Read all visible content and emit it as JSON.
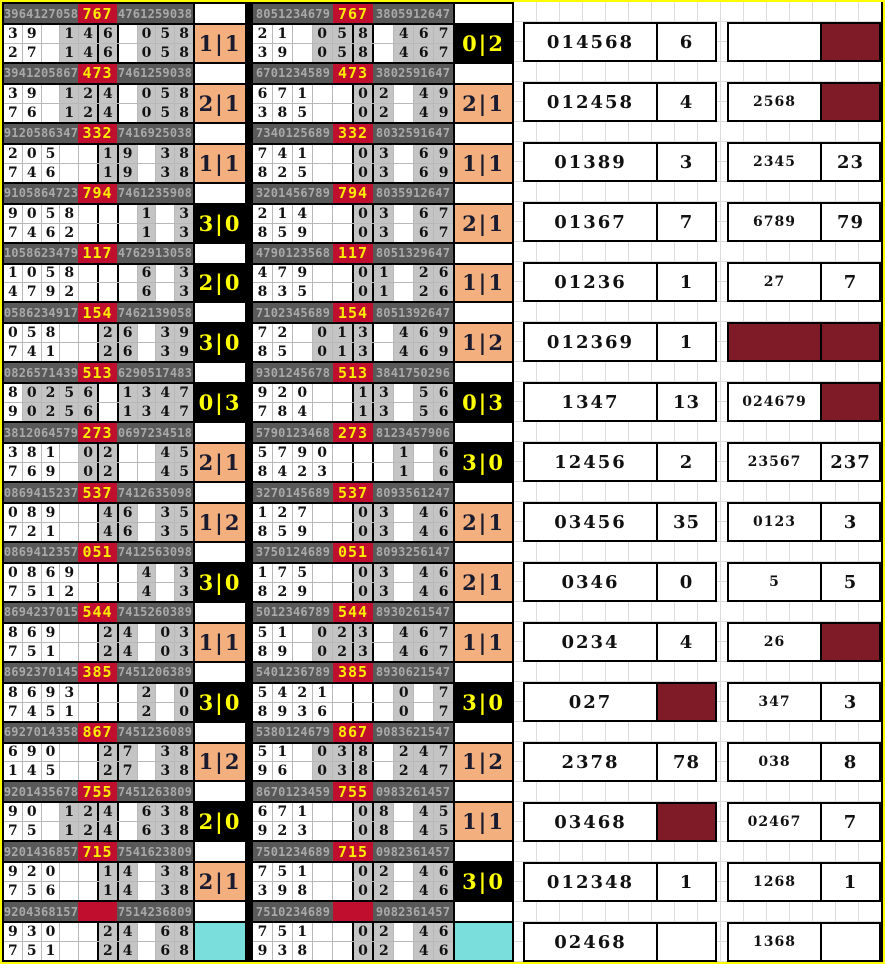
{
  "colors": {
    "outer_border_yellow": "#ffff00",
    "header_bg_gray": "#595959",
    "header_text_gray": "#a9a9a9",
    "draw_cell_red": "#c00e2f",
    "draw_cell_text_yellow": "#ffec00",
    "highlight_cell_gray": "#c4c4c4",
    "badge_orange": "#f3b07e",
    "badge_black": "#000000",
    "badge_text_yellow": "#ffff00",
    "badge_cyan": "#7adedd",
    "maroon_fill": "#7e1b27",
    "gridline_gray": "#dcdcdc"
  },
  "chart_data": {
    "type": "table",
    "left_panel_blocks": [
      {
        "hl": "3964127058",
        "hm": "767",
        "hr": "4761259038",
        "r1": "39.146.058",
        "r2": "27.146.058",
        "g": [
          4,
          5,
          6,
          8,
          9,
          10
        ],
        "b": [
          "1|1",
          "orange"
        ]
      },
      {
        "hl": "3941205867",
        "hm": "473",
        "hr": "7461259038",
        "r1": "39.124.058",
        "r2": "76.124.058",
        "g": [
          4,
          5,
          6,
          8,
          9,
          10
        ],
        "b": [
          "2|1",
          "orange"
        ]
      },
      {
        "hl": "9120586347",
        "hm": "332",
        "hr": "7416925038",
        "r1": "205..19.38",
        "r2": "746..19.38",
        "g": [
          6,
          7,
          9,
          10
        ],
        "b": [
          "1|1",
          "orange"
        ]
      },
      {
        "hl": "9105864723",
        "hm": "794",
        "hr": "7461235908",
        "r1": "9058...1.3",
        "r2": "7462...1.3",
        "g": [
          8,
          10
        ],
        "b": [
          "3|0",
          "black"
        ]
      },
      {
        "hl": "1058623479",
        "hm": "117",
        "hr": "4762913058",
        "r1": "1058...6.3",
        "r2": "4792...6.3",
        "g": [
          8,
          10
        ],
        "b": [
          "2|0",
          "black"
        ]
      },
      {
        "hl": "0586234917",
        "hm": "154",
        "hr": "7462139058",
        "r1": "058..26.39",
        "r2": "741..26.39",
        "g": [
          6,
          7,
          9,
          10
        ],
        "b": [
          "3|0",
          "black"
        ]
      },
      {
        "hl": "0826571439",
        "hm": "513",
        "hr": "6290517483",
        "r1": "80256.1347",
        "r2": "90256.1347",
        "g": [
          2,
          3,
          4,
          5,
          7,
          8,
          9,
          10
        ],
        "b": [
          "0|3",
          "black"
        ]
      },
      {
        "hl": "3812064579",
        "hm": "273",
        "hr": "0697234518",
        "r1": "381.02..45",
        "r2": "769.02..45",
        "g": [
          5,
          6,
          9,
          10
        ],
        "b": [
          "2|1",
          "orange"
        ]
      },
      {
        "hl": "0869415237",
        "hm": "537",
        "hr": "7412635098",
        "r1": "089..46.35",
        "r2": "721..46.35",
        "g": [
          6,
          7,
          9,
          10
        ],
        "b": [
          "1|2",
          "orange"
        ]
      },
      {
        "hl": "0869412357",
        "hm": "051",
        "hr": "7412563098",
        "r1": "0869...4.3",
        "r2": "7512...4.3",
        "g": [
          8,
          10
        ],
        "b": [
          "3|0",
          "black"
        ]
      },
      {
        "hl": "8694237015",
        "hm": "544",
        "hr": "7415260389",
        "r1": "869..24.03",
        "r2": "751..24.03",
        "g": [
          6,
          7,
          9,
          10
        ],
        "b": [
          "1|1",
          "orange"
        ]
      },
      {
        "hl": "8692370145",
        "hm": "385",
        "hr": "7451206389",
        "r1": "8693...2.0",
        "r2": "7451...2.0",
        "g": [
          8,
          10
        ],
        "b": [
          "3|0",
          "black"
        ]
      },
      {
        "hl": "6927014358",
        "hm": "867",
        "hr": "7451236089",
        "r1": "690..27.38",
        "r2": "145..27.38",
        "g": [
          6,
          7,
          9,
          10
        ],
        "b": [
          "1|2",
          "orange"
        ]
      },
      {
        "hl": "9201435678",
        "hm": "755",
        "hr": "7451263809",
        "r1": "90.124.638",
        "r2": "75.124.638",
        "g": [
          4,
          5,
          6,
          8,
          9,
          10
        ],
        "b": [
          "2|0",
          "black"
        ]
      },
      {
        "hl": "9201436857",
        "hm": "715",
        "hr": "7541623809",
        "r1": "920..14.38",
        "r2": "756..14.38",
        "g": [
          6,
          7,
          9,
          10
        ],
        "b": [
          "2|1",
          "orange"
        ]
      },
      {
        "hl": "9204368157",
        "hm": "",
        "hr": "7514236809",
        "r1": "930..24.68",
        "r2": "751..24.68",
        "g": [
          6,
          7,
          9,
          10
        ],
        "b": [
          "",
          "cyan"
        ]
      }
    ],
    "middle_panel_blocks": [
      {
        "hl": "8051234679",
        "hm": "767",
        "hr": "3805912647",
        "r1": "21.058.467",
        "r2": "39.058.467",
        "g": [
          4,
          5,
          6,
          8,
          9,
          10
        ],
        "b": [
          "0|2",
          "black"
        ]
      },
      {
        "hl": "6701234589",
        "hm": "473",
        "hr": "3802591647",
        "r1": "671..02.49",
        "r2": "385..02.49",
        "g": [
          6,
          7,
          9,
          10
        ],
        "b": [
          "2|1",
          "orange"
        ]
      },
      {
        "hl": "7340125689",
        "hm": "332",
        "hr": "8032591647",
        "r1": "741..03.69",
        "r2": "825..03.69",
        "g": [
          6,
          7,
          9,
          10
        ],
        "b": [
          "1|1",
          "orange"
        ]
      },
      {
        "hl": "3201456789",
        "hm": "794",
        "hr": "8035912647",
        "r1": "214..03.67",
        "r2": "859..03.67",
        "g": [
          6,
          7,
          9,
          10
        ],
        "b": [
          "2|1",
          "orange"
        ]
      },
      {
        "hl": "4790123568",
        "hm": "117",
        "hr": "8051329647",
        "r1": "479..01.26",
        "r2": "835..01.26",
        "g": [
          6,
          7,
          9,
          10
        ],
        "b": [
          "1|1",
          "orange"
        ]
      },
      {
        "hl": "7102345689",
        "hm": "154",
        "hr": "8051392647",
        "r1": "72.013.469",
        "r2": "85.013.469",
        "g": [
          4,
          5,
          6,
          8,
          9,
          10
        ],
        "b": [
          "1|2",
          "orange"
        ]
      },
      {
        "hl": "9301245678",
        "hm": "513",
        "hr": "3841750296",
        "r1": "920..13.56",
        "r2": "784..13.56",
        "g": [
          6,
          7,
          9,
          10
        ],
        "b": [
          "0|3",
          "black"
        ]
      },
      {
        "hl": "5790123468",
        "hm": "273",
        "hr": "8123457906",
        "r1": "5790...1.6",
        "r2": "8423...1.6",
        "g": [
          8,
          10
        ],
        "b": [
          "3|0",
          "black"
        ]
      },
      {
        "hl": "3270145689",
        "hm": "537",
        "hr": "8093561247",
        "r1": "127..03.46",
        "r2": "859..03.46",
        "g": [
          6,
          7,
          9,
          10
        ],
        "b": [
          "2|1",
          "orange"
        ]
      },
      {
        "hl": "3750124689",
        "hm": "051",
        "hr": "8093256147",
        "r1": "175..03.46",
        "r2": "829..03.46",
        "g": [
          6,
          7,
          9,
          10
        ],
        "b": [
          "2|1",
          "orange"
        ]
      },
      {
        "hl": "5012346789",
        "hm": "544",
        "hr": "8930261547",
        "r1": "51.023.467",
        "r2": "89.023.467",
        "g": [
          4,
          5,
          6,
          8,
          9,
          10
        ],
        "b": [
          "1|1",
          "orange"
        ]
      },
      {
        "hl": "5401236789",
        "hm": "385",
        "hr": "8930621547",
        "r1": "5421...0.7",
        "r2": "8936...0.7",
        "g": [
          8,
          10
        ],
        "b": [
          "3|0",
          "black"
        ]
      },
      {
        "hl": "5380124679",
        "hm": "867",
        "hr": "9083621547",
        "r1": "51.038.247",
        "r2": "96.038.247",
        "g": [
          4,
          5,
          6,
          8,
          9,
          10
        ],
        "b": [
          "1|2",
          "orange"
        ]
      },
      {
        "hl": "8670123459",
        "hm": "755",
        "hr": "0983261457",
        "r1": "671..08.45",
        "r2": "923..08.45",
        "g": [
          6,
          7,
          9,
          10
        ],
        "b": [
          "1|1",
          "orange"
        ]
      },
      {
        "hl": "7501234689",
        "hm": "715",
        "hr": "0982361457",
        "r1": "751..02.46",
        "r2": "398..02.46",
        "g": [
          6,
          7,
          9,
          10
        ],
        "b": [
          "3|0",
          "black"
        ]
      },
      {
        "hl": "7510234689",
        "hm": "",
        "hr": "9082361457",
        "r1": "751..02.46",
        "r2": "938..02.46",
        "g": [
          6,
          7,
          9,
          10
        ],
        "b": [
          "",
          "cyan"
        ]
      }
    ],
    "result_boxes": [
      {
        "a1": "014568",
        "a2": "6",
        "b1": "",
        "b2": "",
        "filled": [
          "b2"
        ]
      },
      {
        "a1": "012458",
        "a2": "4",
        "b1": "2568",
        "b2": "",
        "filled": [
          "b2"
        ]
      },
      {
        "a1": "01389",
        "a2": "3",
        "b1": "2345",
        "b2": "23",
        "filled": []
      },
      {
        "a1": "01367",
        "a2": "7",
        "b1": "6789",
        "b2": "79",
        "filled": []
      },
      {
        "a1": "01236",
        "a2": "1",
        "b1": "27",
        "b2": "7",
        "filled": []
      },
      {
        "a1": "012369",
        "a2": "1",
        "b1": "",
        "b2": "",
        "filled": [
          "b1",
          "b2"
        ]
      },
      {
        "a1": "1347",
        "a2": "13",
        "b1": "024679",
        "b2": "",
        "filled": [
          "b2"
        ]
      },
      {
        "a1": "12456",
        "a2": "2",
        "b1": "23567",
        "b2": "237",
        "filled": []
      },
      {
        "a1": "03456",
        "a2": "35",
        "b1": "0123",
        "b2": "3",
        "filled": []
      },
      {
        "a1": "0346",
        "a2": "0",
        "b1": "5",
        "b2": "5",
        "filled": []
      },
      {
        "a1": "0234",
        "a2": "4",
        "b1": "26",
        "b2": "",
        "filled": [
          "b2"
        ]
      },
      {
        "a1": "027",
        "a2": "",
        "b1": "347",
        "b2": "3",
        "filled": [
          "a2"
        ]
      },
      {
        "a1": "2378",
        "a2": "78",
        "b1": "038",
        "b2": "8",
        "filled": []
      },
      {
        "a1": "03468",
        "a2": "",
        "b1": "02467",
        "b2": "7",
        "filled": [
          "a2"
        ]
      },
      {
        "a1": "012348",
        "a2": "1",
        "b1": "1268",
        "b2": "1",
        "filled": []
      },
      {
        "a1": "02468",
        "a2": "",
        "b1": "1368",
        "b2": "",
        "filled": []
      }
    ]
  }
}
